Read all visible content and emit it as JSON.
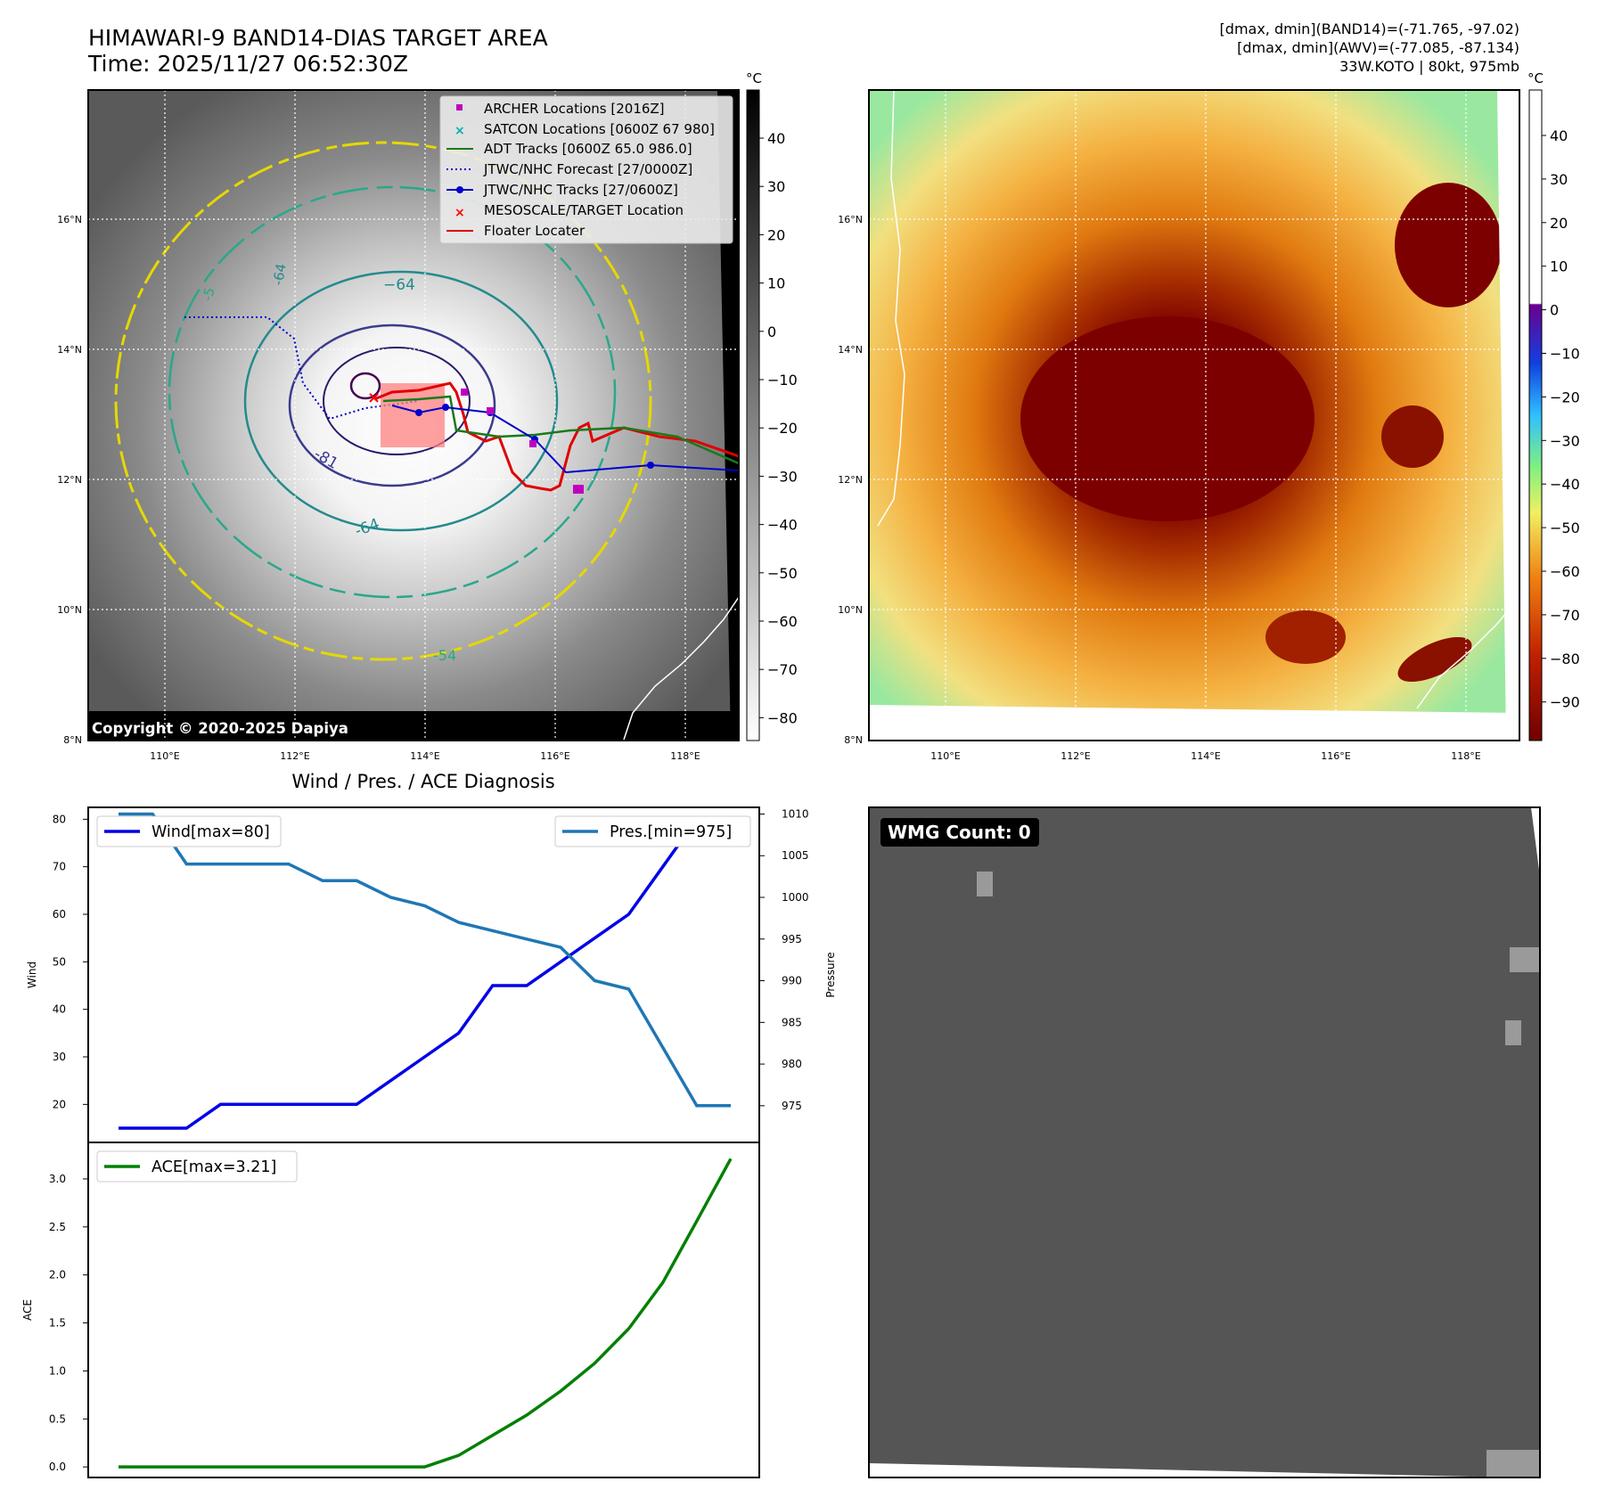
{
  "header": {
    "title_line1": "HIMAWARI-9 BAND14-DIAS TARGET AREA",
    "title_line2": "Time: 2025/11/27 06:52:30Z",
    "info_line1": "[dmax, dmin](BAND14)=(-71.765, -97.02)",
    "info_line2": "[dmax, dmin](AWV)=(-77.085, -87.134)",
    "info_line3": "33W.KOTO | 80kt, 975mb"
  },
  "colors": {
    "wind": "#0000e6",
    "pressure": "#1f77b4",
    "ace": "#008000",
    "adt": "#1a7a1a",
    "jtwc": "#0000cc",
    "floater": "#e00000",
    "archer": "#c000c0",
    "satcon": "#00b0b0",
    "target_box": "#ff8080",
    "wmg_bg": "#555555"
  },
  "map_ir": {
    "unit": "°C",
    "colorbar_ticks": [
      "40",
      "30",
      "20",
      "10",
      "0",
      "−10",
      "−20",
      "−30",
      "−40",
      "−50",
      "−60",
      "−70",
      "−80"
    ],
    "lat_labels": [
      "16°N",
      "14°N",
      "12°N",
      "10°N",
      "8°N"
    ],
    "lon_labels": [
      "110°E",
      "112°E",
      "114°E",
      "116°E",
      "118°E"
    ],
    "contour_labels": [
      "−64",
      "-64",
      "-81",
      "-64",
      "-54",
      "-5"
    ],
    "copyright": "Copyright © 2020-2025 Dapiya",
    "legend": [
      "ARCHER Locations [2016Z]",
      "SATCON Locations [0600Z 67 980]",
      "ADT Tracks [0600Z 65.0 986.0]",
      "JTWC/NHC Forecast [27/0000Z]",
      "JTWC/NHC Tracks [27/0600Z]",
      "MESOSCALE/TARGET Location",
      "Floater Locater"
    ]
  },
  "map_color": {
    "unit": "°C",
    "colorbar_ticks": [
      "40",
      "30",
      "20",
      "10",
      "0",
      "−10",
      "−20",
      "−30",
      "−40",
      "−50",
      "−60",
      "−70",
      "−80",
      "−90"
    ],
    "lat_labels": [
      "16°N",
      "14°N",
      "12°N",
      "10°N",
      "8°N"
    ],
    "lon_labels": [
      "110°E",
      "112°E",
      "114°E",
      "116°E",
      "118°E"
    ]
  },
  "chart_data": [
    {
      "type": "line",
      "title": "Wind / Pres. / ACE Diagnosis",
      "ylabel": "Wind",
      "y2label": "Pressure",
      "ylim": [
        12,
        82.5
      ],
      "y2lim": [
        970.6,
        1010.8
      ],
      "yticks": [
        "80",
        "70",
        "60",
        "50",
        "40",
        "30",
        "20"
      ],
      "y2ticks": [
        "1010",
        "1005",
        "1000",
        "995",
        "990",
        "985",
        "980",
        "975"
      ],
      "series": [
        {
          "name": "Wind[max=80]",
          "axis": "left",
          "values": [
            15,
            15,
            15,
            20,
            20,
            20,
            20,
            20,
            25,
            30,
            35,
            45,
            45,
            50,
            55,
            60,
            70,
            80,
            80
          ]
        },
        {
          "name": "Pres.[min=975]",
          "axis": "right",
          "values": [
            1010,
            1010,
            1004,
            1004,
            1004,
            1004,
            1002,
            1002,
            1000,
            999,
            997,
            996,
            995,
            994,
            990,
            989,
            982,
            975,
            975
          ]
        }
      ]
    },
    {
      "type": "line",
      "ylabel": "ACE",
      "ylim": [
        -0.11,
        3.38
      ],
      "yticks": [
        "3.0",
        "2.5",
        "2.0",
        "1.5",
        "1.0",
        "0.5",
        "0.0"
      ],
      "series": [
        {
          "name": "ACE[max=3.21]",
          "values": [
            0,
            0,
            0,
            0,
            0,
            0,
            0,
            0,
            0,
            0,
            0.12,
            0.33,
            0.54,
            0.79,
            1.08,
            1.44,
            1.92,
            2.56,
            3.21
          ]
        }
      ]
    }
  ],
  "wmg": {
    "label": "WMG Count: 0"
  }
}
